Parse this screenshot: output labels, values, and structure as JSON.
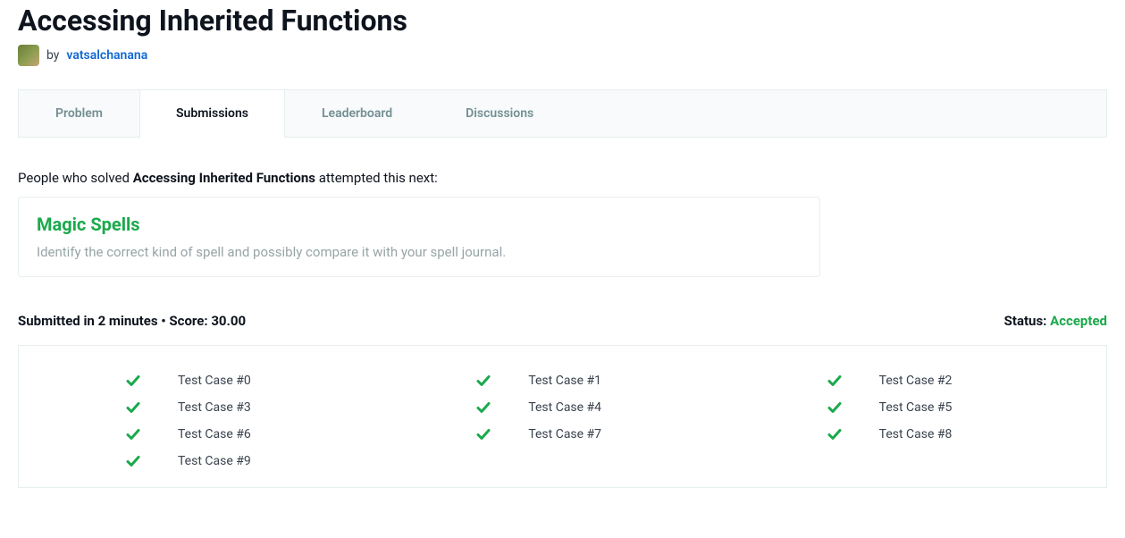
{
  "page_title": "Accessing Inherited Functions",
  "author": {
    "by": "by",
    "name": "vatsalchanana"
  },
  "tabs": [
    {
      "label": "Problem",
      "active": false
    },
    {
      "label": "Submissions",
      "active": true
    },
    {
      "label": "Leaderboard",
      "active": false
    },
    {
      "label": "Discussions",
      "active": false
    }
  ],
  "next_prompt": {
    "prefix": "People who solved ",
    "bold": "Accessing Inherited Functions",
    "suffix": " attempted this next:"
  },
  "next_card": {
    "title": "Magic Spells",
    "description": "Identify the correct kind of spell and possibly compare it with your spell journal."
  },
  "submission": {
    "submitted_text": "Submitted in 2 minutes • Score: 30.00",
    "status_label": "Status: ",
    "status_value": "Accepted"
  },
  "testcases": [
    {
      "label": "Test Case #0",
      "passed": true
    },
    {
      "label": "Test Case #1",
      "passed": true
    },
    {
      "label": "Test Case #2",
      "passed": true
    },
    {
      "label": "Test Case #3",
      "passed": true
    },
    {
      "label": "Test Case #4",
      "passed": true
    },
    {
      "label": "Test Case #5",
      "passed": true
    },
    {
      "label": "Test Case #6",
      "passed": true
    },
    {
      "label": "Test Case #7",
      "passed": true
    },
    {
      "label": "Test Case #8",
      "passed": true
    },
    {
      "label": "Test Case #9",
      "passed": true
    }
  ],
  "colors": {
    "accent_green": "#1ba94c",
    "link_blue": "#1268d3",
    "border": "#e7eeef",
    "text_primary": "#0e141e",
    "text_muted": "#738f93",
    "text_desc": "#97a5a6",
    "tab_bg": "#f8fafb"
  }
}
